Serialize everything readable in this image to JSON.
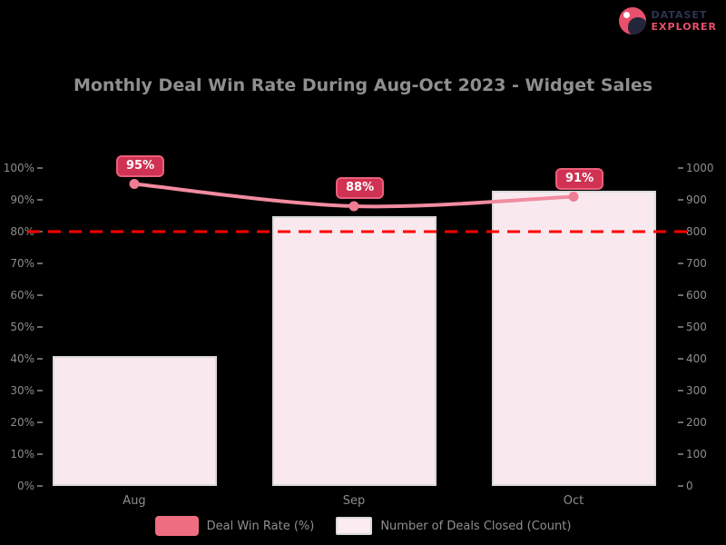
{
  "logo": {
    "line1": "DATASET",
    "line2": "EXPLORER"
  },
  "chart_data": {
    "type": "bar",
    "subtype": "combo bar+line, dual axis",
    "title": "Monthly Deal Win Rate During Aug-Oct 2023 - Widget Sales",
    "categories": [
      "Aug",
      "Sep",
      "Oct"
    ],
    "series": [
      {
        "name": "Deal Win Rate (%)",
        "type": "line",
        "axis": "left",
        "values": [
          95,
          88,
          91
        ],
        "point_labels": [
          "95%",
          "88%",
          "91%"
        ],
        "line_color": "#f28ba0",
        "point_color": "#ee7d93",
        "badge_bg": "#cf3253",
        "badge_border": "#ea5f7b"
      },
      {
        "name": "Number of Deals Closed (Count)",
        "type": "bar",
        "axis": "right",
        "values": [
          410,
          850,
          930
        ],
        "fill": "#f9e9ef",
        "border": "#d9d9d9"
      }
    ],
    "target_line": {
      "axis": "left",
      "value": 80,
      "color": "#ff0000",
      "style": "dashed"
    },
    "axes": {
      "left": {
        "min": 0,
        "max": 100,
        "step": 10,
        "suffix": "%"
      },
      "right": {
        "min": 0,
        "max": 1000,
        "step": 100,
        "suffix": ""
      }
    },
    "legend": [
      {
        "label": "Deal Win Rate (%)",
        "swatch": "#ee6d80"
      },
      {
        "label": "Number of Deals Closed (Count)",
        "swatch": "#fbecf2"
      }
    ],
    "background": "#000000",
    "text_color": "#8f8f8f",
    "grid": "off",
    "legend_position": "bottom"
  }
}
